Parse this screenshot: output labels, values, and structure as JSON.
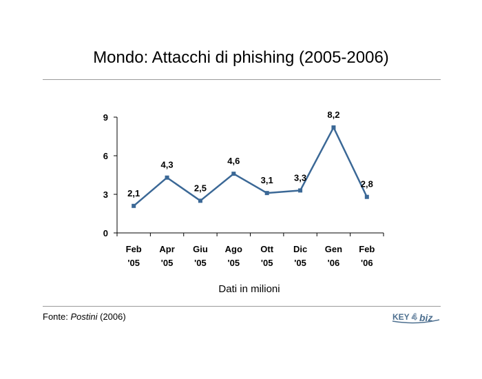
{
  "title": "Mondo: Attacchi di phishing (2005-2006)",
  "chart_data": {
    "type": "line",
    "title": "Mondo: Attacchi di phishing (2005-2006)",
    "categories": [
      "Feb '05",
      "Apr '05",
      "Giu '05",
      "Ago '05",
      "Ott '05",
      "Dic '05",
      "Gen '06",
      "Feb '06"
    ],
    "category_lines": [
      [
        "Feb",
        "'05"
      ],
      [
        "Apr",
        "'05"
      ],
      [
        "Giu",
        "'05"
      ],
      [
        "Ago",
        "'05"
      ],
      [
        "Ott",
        "'05"
      ],
      [
        "Dic",
        "'05"
      ],
      [
        "Gen",
        "'06"
      ],
      [
        "Feb",
        "'06"
      ]
    ],
    "values": [
      2.1,
      4.3,
      2.5,
      4.6,
      3.1,
      3.3,
      8.2,
      2.8
    ],
    "data_labels": [
      "2,1",
      "4,3",
      "2,5",
      "4,6",
      "3,1",
      "3,3",
      "8,2",
      "2,8"
    ],
    "yticks": [
      0,
      3,
      6,
      9
    ],
    "ylim": [
      0,
      9
    ],
    "xlabel": "Dati in milioni",
    "ylabel": "",
    "grid": false,
    "legend": "none",
    "line_color": "#3b6896"
  },
  "source": {
    "prefix": "Fonte: ",
    "name": "Postini",
    "suffix": " (2006)"
  },
  "logo": {
    "text_left": "KEY",
    "text_right": "biz",
    "color": "#4d6f8f"
  }
}
